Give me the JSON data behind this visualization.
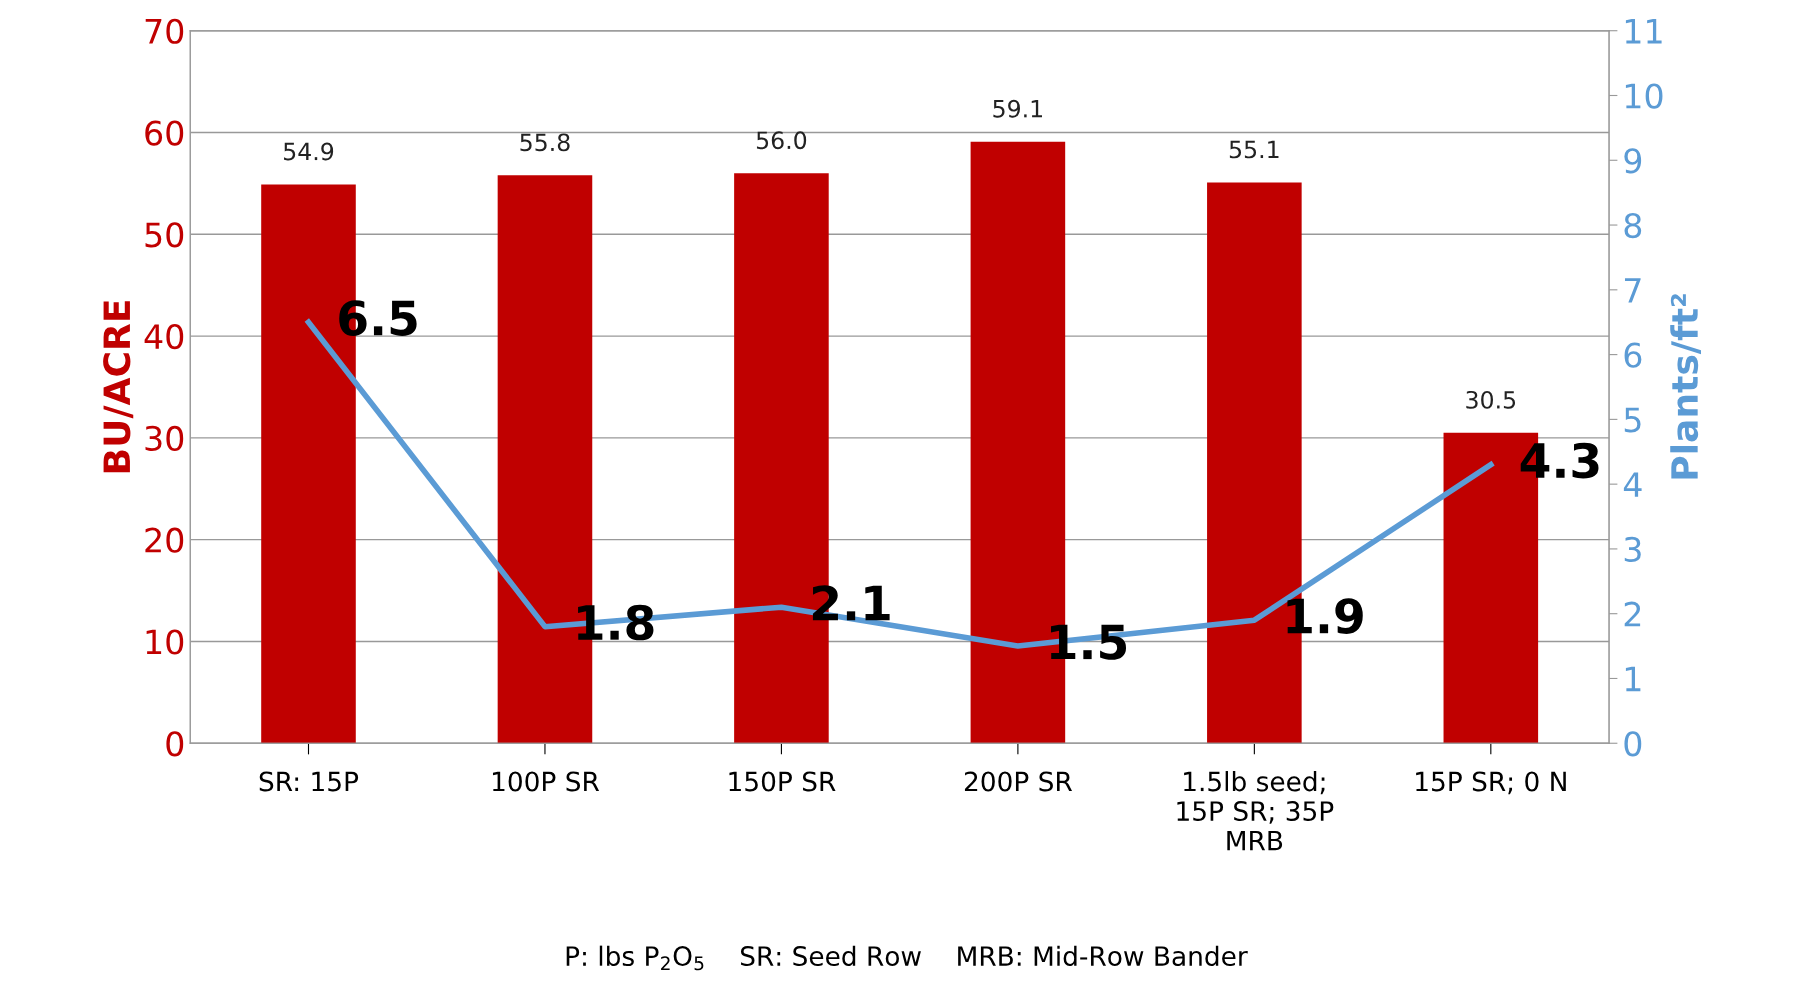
{
  "chart_data": {
    "type": "bar",
    "categories": [
      "SR: 15P",
      "100P SR",
      "150P SR",
      "200P SR",
      "1.5lb seed;\n15P SR; 35P\nMRB",
      "15P SR; 0 N"
    ],
    "series": [
      {
        "color": "#c00000",
        "values": [
          54.9,
          55.8,
          56.0,
          59.1,
          55.1,
          30.5
        ],
        "value_labels": [
          "54.9",
          "55.8",
          "56.0",
          "59.1",
          "55.1",
          "30.5"
        ]
      },
      {
        "type": "line",
        "axis": "y2",
        "color": "#5b9bd5",
        "values": [
          6.5,
          1.8,
          2.1,
          1.5,
          1.9,
          4.3
        ]
      }
    ],
    "ylabel": "BU/ACRE",
    "y2label": "Plants/ft²",
    "ylim": [
      0,
      70
    ],
    "yticks": [
      0,
      10,
      20,
      30,
      40,
      50,
      60,
      70
    ],
    "y2lim": [
      0,
      11
    ],
    "y2ticks": [
      0,
      1,
      2,
      3,
      4,
      5,
      6,
      7,
      8,
      9,
      10,
      11
    ],
    "grid": "y",
    "data_labels": true,
    "marker": "none",
    "line_style": "solid",
    "annotations": [
      "P: lbs P$_{2}$O$_{5}$    SR: Seed Row    MRB: Mid-Row Bander"
    ]
  }
}
